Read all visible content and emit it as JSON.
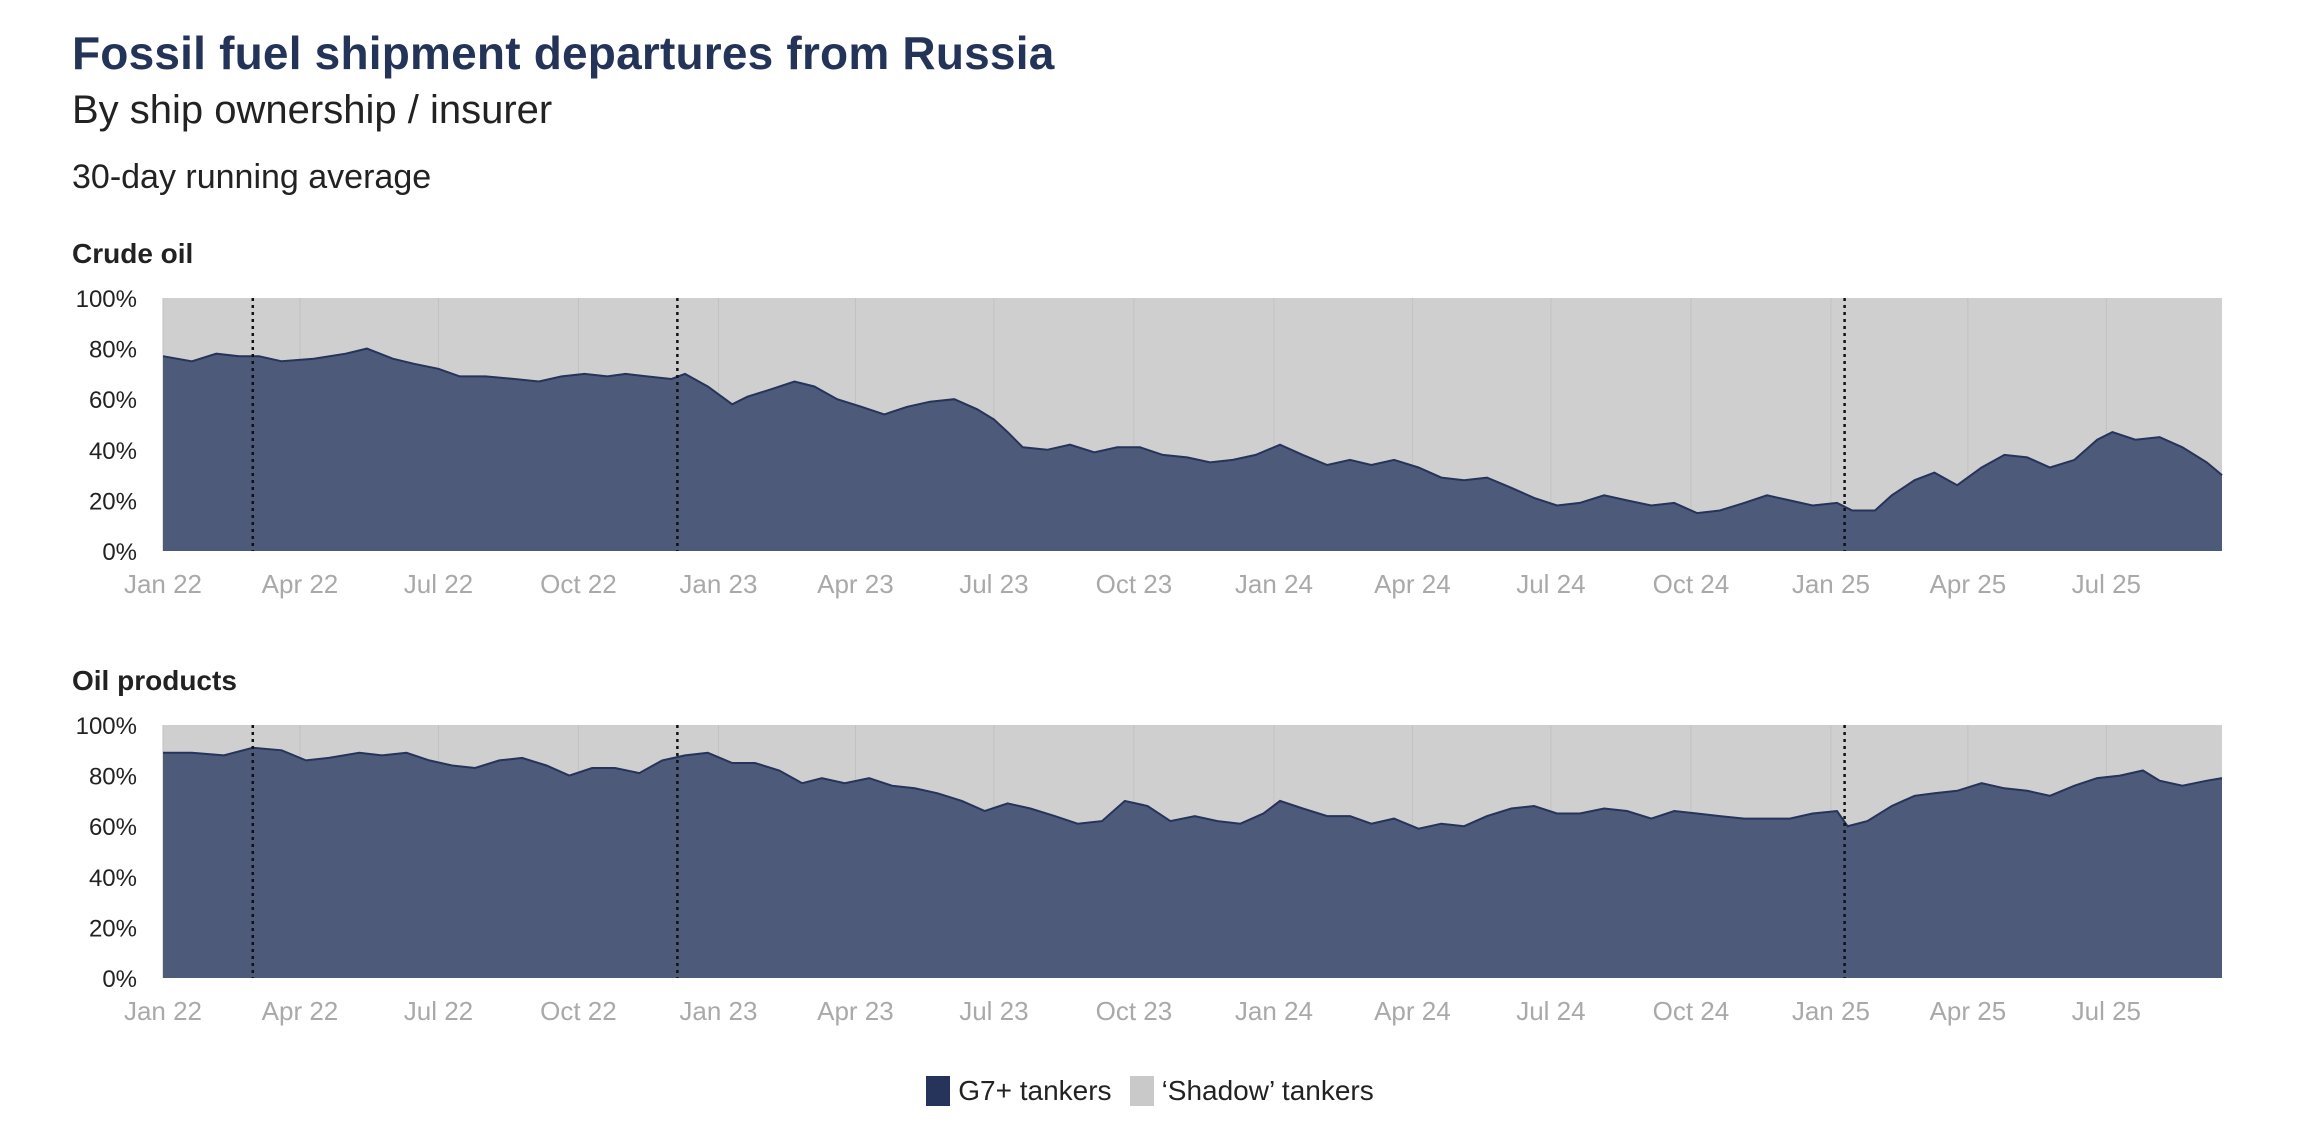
{
  "title": "Fossil fuel shipment departures from Russia",
  "subtitle": "By ship ownership / insurer",
  "note": "30-day running average",
  "colors": {
    "g7": "#4d5a7a",
    "g7_line": "#26335a",
    "shadow": "#cfcfcf",
    "legend_g7": "#26335a",
    "legend_shadow": "#c9c9c9"
  },
  "legend": [
    {
      "label": "G7+ tankers",
      "color": "#26335a"
    },
    {
      "label": "‘Shadow’ tankers",
      "color": "#c9c9c9"
    }
  ],
  "chart_data": [
    {
      "type": "area",
      "title": "Crude oil",
      "stacked_to": 100,
      "ylim": [
        0,
        100
      ],
      "yticks": [
        "0%",
        "20%",
        "40%",
        "60%",
        "80%",
        "100%"
      ],
      "xlim": [
        "2022-01-01",
        "2025-09-15"
      ],
      "xticks": [
        "Jan 22",
        "Apr 22",
        "Jul 22",
        "Oct 22",
        "Jan 23",
        "Apr 23",
        "Jul 23",
        "Oct 23",
        "Jan 24",
        "Apr 24",
        "Jul 24",
        "Oct 24",
        "Jan 25",
        "Apr 25",
        "Jul 25"
      ],
      "reference_lines": [
        "2022-03-01",
        "2022-12-05",
        "2025-01-10"
      ],
      "series": [
        {
          "name": "G7+ tankers",
          "points": [
            [
              "2022-01-01",
              77
            ],
            [
              "2022-01-20",
              75
            ],
            [
              "2022-02-05",
              78
            ],
            [
              "2022-02-20",
              77
            ],
            [
              "2022-03-05",
              77
            ],
            [
              "2022-03-20",
              75
            ],
            [
              "2022-04-10",
              76
            ],
            [
              "2022-05-01",
              78
            ],
            [
              "2022-05-15",
              80
            ],
            [
              "2022-06-01",
              76
            ],
            [
              "2022-06-15",
              74
            ],
            [
              "2022-07-01",
              72
            ],
            [
              "2022-07-15",
              69
            ],
            [
              "2022-08-01",
              69
            ],
            [
              "2022-08-20",
              68
            ],
            [
              "2022-09-05",
              67
            ],
            [
              "2022-09-20",
              69
            ],
            [
              "2022-10-05",
              70
            ],
            [
              "2022-10-20",
              69
            ],
            [
              "2022-11-01",
              70
            ],
            [
              "2022-11-15",
              69
            ],
            [
              "2022-12-01",
              68
            ],
            [
              "2022-12-10",
              70
            ],
            [
              "2022-12-25",
              65
            ],
            [
              "2023-01-10",
              58
            ],
            [
              "2023-01-20",
              61
            ],
            [
              "2023-02-05",
              64
            ],
            [
              "2023-02-20",
              67
            ],
            [
              "2023-03-05",
              65
            ],
            [
              "2023-03-20",
              60
            ],
            [
              "2023-04-05",
              57
            ],
            [
              "2023-04-20",
              54
            ],
            [
              "2023-05-05",
              57
            ],
            [
              "2023-05-20",
              59
            ],
            [
              "2023-06-05",
              60
            ],
            [
              "2023-06-20",
              56
            ],
            [
              "2023-07-01",
              52
            ],
            [
              "2023-07-10",
              47
            ],
            [
              "2023-07-20",
              41
            ],
            [
              "2023-08-05",
              40
            ],
            [
              "2023-08-20",
              42
            ],
            [
              "2023-09-05",
              39
            ],
            [
              "2023-09-20",
              41
            ],
            [
              "2023-10-05",
              41
            ],
            [
              "2023-10-20",
              38
            ],
            [
              "2023-11-05",
              37
            ],
            [
              "2023-11-20",
              35
            ],
            [
              "2023-12-05",
              36
            ],
            [
              "2023-12-20",
              38
            ],
            [
              "2024-01-05",
              42
            ],
            [
              "2024-01-20",
              38
            ],
            [
              "2024-02-05",
              34
            ],
            [
              "2024-02-20",
              36
            ],
            [
              "2024-03-05",
              34
            ],
            [
              "2024-03-20",
              36
            ],
            [
              "2024-04-05",
              33
            ],
            [
              "2024-04-20",
              29
            ],
            [
              "2024-05-05",
              28
            ],
            [
              "2024-05-20",
              29
            ],
            [
              "2024-06-05",
              25
            ],
            [
              "2024-06-20",
              21
            ],
            [
              "2024-07-05",
              18
            ],
            [
              "2024-07-20",
              19
            ],
            [
              "2024-08-05",
              22
            ],
            [
              "2024-08-20",
              20
            ],
            [
              "2024-09-05",
              18
            ],
            [
              "2024-09-20",
              19
            ],
            [
              "2024-10-05",
              15
            ],
            [
              "2024-10-20",
              16
            ],
            [
              "2024-11-05",
              19
            ],
            [
              "2024-11-20",
              22
            ],
            [
              "2024-12-05",
              20
            ],
            [
              "2024-12-20",
              18
            ],
            [
              "2025-01-05",
              19
            ],
            [
              "2025-01-15",
              16
            ],
            [
              "2025-01-30",
              16
            ],
            [
              "2025-02-10",
              22
            ],
            [
              "2025-02-25",
              28
            ],
            [
              "2025-03-10",
              31
            ],
            [
              "2025-03-25",
              26
            ],
            [
              "2025-04-10",
              33
            ],
            [
              "2025-04-25",
              38
            ],
            [
              "2025-05-10",
              37
            ],
            [
              "2025-05-25",
              33
            ],
            [
              "2025-06-10",
              36
            ],
            [
              "2025-06-25",
              44
            ],
            [
              "2025-07-05",
              47
            ],
            [
              "2025-07-20",
              44
            ],
            [
              "2025-08-05",
              45
            ],
            [
              "2025-08-20",
              41
            ],
            [
              "2025-09-05",
              35
            ],
            [
              "2025-09-15",
              30
            ]
          ]
        },
        {
          "name": "‘Shadow’ tankers",
          "fill_to": 100
        }
      ]
    },
    {
      "type": "area",
      "title": "Oil products",
      "stacked_to": 100,
      "ylim": [
        0,
        100
      ],
      "yticks": [
        "0%",
        "20%",
        "40%",
        "60%",
        "80%",
        "100%"
      ],
      "xlim": [
        "2022-01-01",
        "2025-09-15"
      ],
      "xticks": [
        "Jan 22",
        "Apr 22",
        "Jul 22",
        "Oct 22",
        "Jan 23",
        "Apr 23",
        "Jul 23",
        "Oct 23",
        "Jan 24",
        "Apr 24",
        "Jul 24",
        "Oct 24",
        "Jan 25",
        "Apr 25",
        "Jul 25"
      ],
      "reference_lines": [
        "2022-03-01",
        "2022-12-05",
        "2025-01-10"
      ],
      "series": [
        {
          "name": "G7+ tankers",
          "points": [
            [
              "2022-01-01",
              89
            ],
            [
              "2022-01-20",
              89
            ],
            [
              "2022-02-10",
              88
            ],
            [
              "2022-03-01",
              91
            ],
            [
              "2022-03-20",
              90
            ],
            [
              "2022-04-05",
              86
            ],
            [
              "2022-04-20",
              87
            ],
            [
              "2022-05-10",
              89
            ],
            [
              "2022-05-25",
              88
            ],
            [
              "2022-06-10",
              89
            ],
            [
              "2022-06-25",
              86
            ],
            [
              "2022-07-10",
              84
            ],
            [
              "2022-07-25",
              83
            ],
            [
              "2022-08-10",
              86
            ],
            [
              "2022-08-25",
              87
            ],
            [
              "2022-09-10",
              84
            ],
            [
              "2022-09-25",
              80
            ],
            [
              "2022-10-10",
              83
            ],
            [
              "2022-10-25",
              83
            ],
            [
              "2022-11-10",
              81
            ],
            [
              "2022-11-25",
              86
            ],
            [
              "2022-12-10",
              88
            ],
            [
              "2022-12-25",
              89
            ],
            [
              "2023-01-10",
              85
            ],
            [
              "2023-01-25",
              85
            ],
            [
              "2023-02-10",
              82
            ],
            [
              "2023-02-25",
              77
            ],
            [
              "2023-03-10",
              79
            ],
            [
              "2023-03-25",
              77
            ],
            [
              "2023-04-10",
              79
            ],
            [
              "2023-04-25",
              76
            ],
            [
              "2023-05-10",
              75
            ],
            [
              "2023-05-25",
              73
            ],
            [
              "2023-06-10",
              70
            ],
            [
              "2023-06-25",
              66
            ],
            [
              "2023-07-10",
              69
            ],
            [
              "2023-07-25",
              67
            ],
            [
              "2023-08-10",
              64
            ],
            [
              "2023-08-25",
              61
            ],
            [
              "2023-09-10",
              62
            ],
            [
              "2023-09-25",
              70
            ],
            [
              "2023-10-10",
              68
            ],
            [
              "2023-10-25",
              62
            ],
            [
              "2023-11-10",
              64
            ],
            [
              "2023-11-25",
              62
            ],
            [
              "2023-12-10",
              61
            ],
            [
              "2023-12-25",
              65
            ],
            [
              "2024-01-05",
              70
            ],
            [
              "2024-01-20",
              67
            ],
            [
              "2024-02-05",
              64
            ],
            [
              "2024-02-20",
              64
            ],
            [
              "2024-03-05",
              61
            ],
            [
              "2024-03-20",
              63
            ],
            [
              "2024-04-05",
              59
            ],
            [
              "2024-04-20",
              61
            ],
            [
              "2024-05-05",
              60
            ],
            [
              "2024-05-20",
              64
            ],
            [
              "2024-06-05",
              67
            ],
            [
              "2024-06-20",
              68
            ],
            [
              "2024-07-05",
              65
            ],
            [
              "2024-07-20",
              65
            ],
            [
              "2024-08-05",
              67
            ],
            [
              "2024-08-20",
              66
            ],
            [
              "2024-09-05",
              63
            ],
            [
              "2024-09-20",
              66
            ],
            [
              "2024-10-05",
              65
            ],
            [
              "2024-10-20",
              64
            ],
            [
              "2024-11-05",
              63
            ],
            [
              "2024-11-20",
              63
            ],
            [
              "2024-12-05",
              63
            ],
            [
              "2024-12-20",
              65
            ],
            [
              "2025-01-05",
              66
            ],
            [
              "2025-01-12",
              60
            ],
            [
              "2025-01-25",
              62
            ],
            [
              "2025-02-10",
              68
            ],
            [
              "2025-02-25",
              72
            ],
            [
              "2025-03-10",
              73
            ],
            [
              "2025-03-25",
              74
            ],
            [
              "2025-04-10",
              77
            ],
            [
              "2025-04-25",
              75
            ],
            [
              "2025-05-10",
              74
            ],
            [
              "2025-05-25",
              72
            ],
            [
              "2025-06-10",
              76
            ],
            [
              "2025-06-25",
              79
            ],
            [
              "2025-07-10",
              80
            ],
            [
              "2025-07-25",
              82
            ],
            [
              "2025-08-05",
              78
            ],
            [
              "2025-08-20",
              76
            ],
            [
              "2025-09-05",
              78
            ],
            [
              "2025-09-15",
              79
            ]
          ]
        },
        {
          "name": "‘Shadow’ tankers",
          "fill_to": 100
        }
      ]
    }
  ]
}
